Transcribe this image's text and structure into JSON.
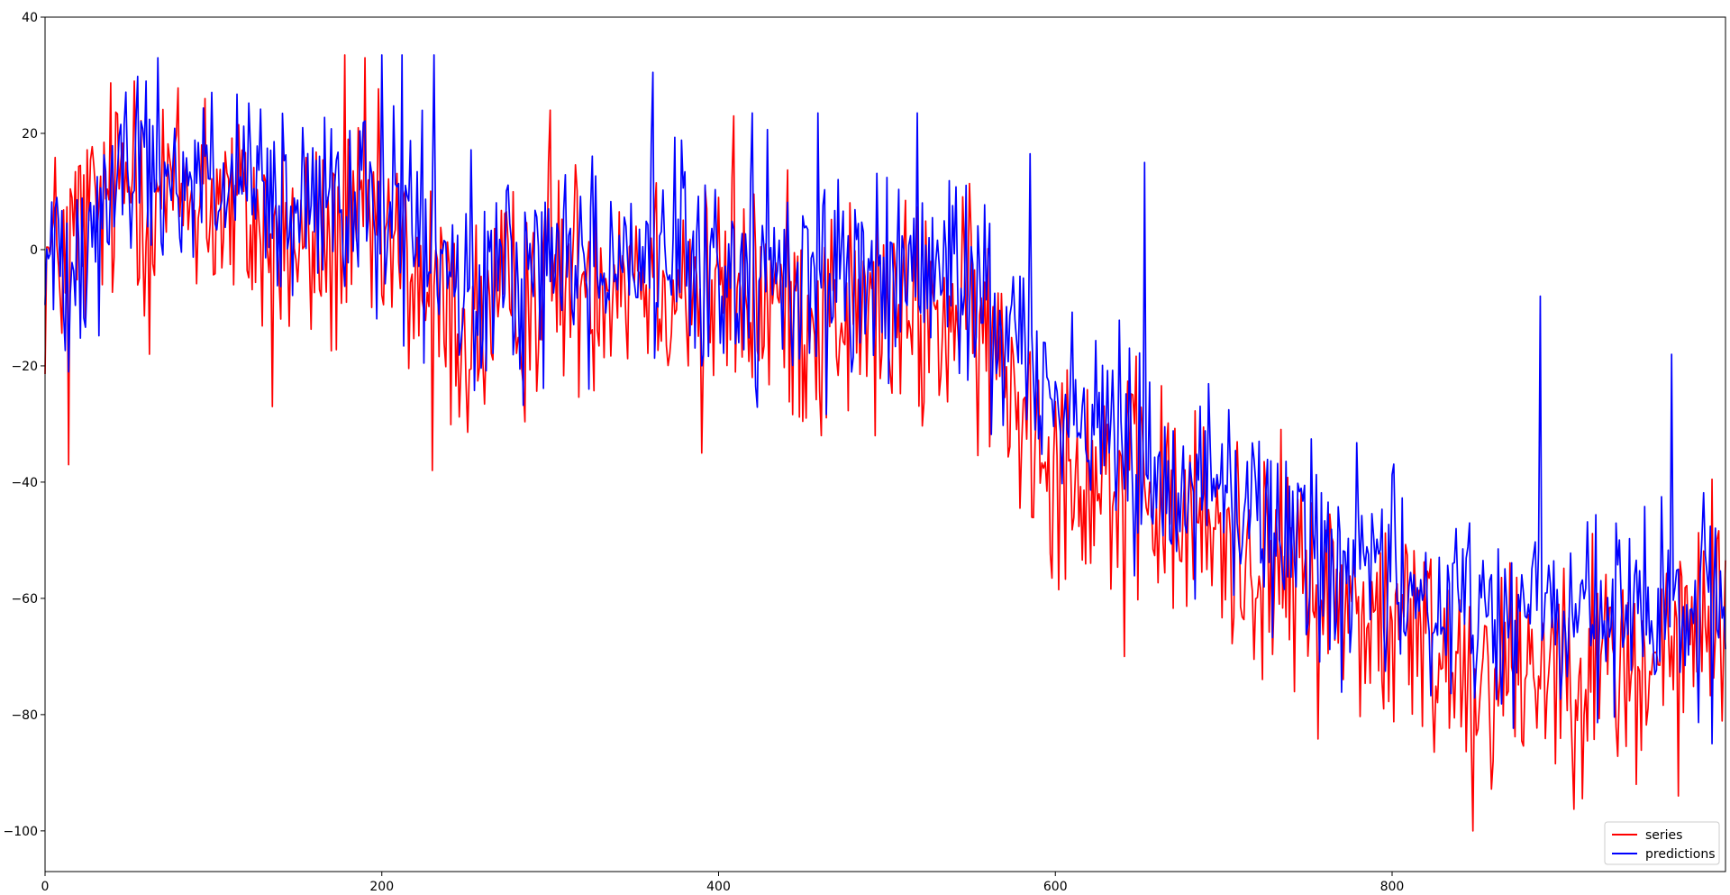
{
  "chart_data": {
    "type": "line",
    "title": "",
    "xlabel": "",
    "ylabel": "",
    "xlim": [
      0,
      998
    ],
    "ylim": [
      -107,
      40
    ],
    "xticks": [
      0,
      200,
      400,
      600,
      800
    ],
    "yticks": [
      -100,
      -80,
      -60,
      -40,
      -20,
      0,
      20,
      40
    ],
    "grid": false,
    "legend_position": "bottom-right",
    "n_points": 999,
    "series": [
      {
        "name": "series",
        "color": "#ff0000",
        "anchors": [
          [
            0,
            -3
          ],
          [
            20,
            3
          ],
          [
            50,
            12
          ],
          [
            100,
            8
          ],
          [
            150,
            0
          ],
          [
            200,
            2
          ],
          [
            250,
            -15
          ],
          [
            300,
            -5
          ],
          [
            350,
            -2
          ],
          [
            400,
            -8
          ],
          [
            450,
            -10
          ],
          [
            500,
            -12
          ],
          [
            550,
            -12
          ],
          [
            600,
            -35
          ],
          [
            650,
            -42
          ],
          [
            700,
            -50
          ],
          [
            750,
            -58
          ],
          [
            800,
            -65
          ],
          [
            850,
            -72
          ],
          [
            900,
            -70
          ],
          [
            950,
            -72
          ],
          [
            998,
            -60
          ]
        ],
        "noise": 10,
        "spikes": [
          [
            14,
            -37
          ],
          [
            53,
            29
          ],
          [
            62,
            -18
          ],
          [
            95,
            26
          ],
          [
            135,
            -27
          ],
          [
            178,
            33.5
          ],
          [
            190,
            33
          ],
          [
            230,
            -38
          ],
          [
            300,
            24
          ],
          [
            390,
            -35
          ],
          [
            409,
            23
          ],
          [
            461,
            -32
          ],
          [
            641,
            -70
          ],
          [
            795,
            -79
          ],
          [
            848,
            -100
          ],
          [
            945,
            -92
          ],
          [
            970,
            -94
          ]
        ]
      },
      {
        "name": "predictions",
        "color": "#0000ff",
        "anchors": [
          [
            0,
            -3
          ],
          [
            20,
            2
          ],
          [
            50,
            15
          ],
          [
            100,
            12
          ],
          [
            150,
            5
          ],
          [
            200,
            8
          ],
          [
            250,
            -8
          ],
          [
            300,
            -2
          ],
          [
            350,
            0
          ],
          [
            400,
            -5
          ],
          [
            450,
            -4
          ],
          [
            500,
            -5
          ],
          [
            550,
            -5
          ],
          [
            600,
            -25
          ],
          [
            650,
            -35
          ],
          [
            700,
            -42
          ],
          [
            750,
            -50
          ],
          [
            800,
            -58
          ],
          [
            850,
            -62
          ],
          [
            900,
            -63
          ],
          [
            950,
            -64
          ],
          [
            998,
            -60
          ]
        ],
        "noise": 9,
        "spikes": [
          [
            60,
            29
          ],
          [
            200,
            33.5
          ],
          [
            212,
            33.5
          ],
          [
            231,
            33.5
          ],
          [
            361,
            30.5
          ],
          [
            420,
            23.5
          ],
          [
            459,
            23.5
          ],
          [
            518,
            23.5
          ],
          [
            585,
            16.5
          ],
          [
            653,
            15
          ],
          [
            888,
            -8
          ],
          [
            966,
            -18
          ],
          [
            990,
            -85
          ]
        ]
      }
    ]
  }
}
